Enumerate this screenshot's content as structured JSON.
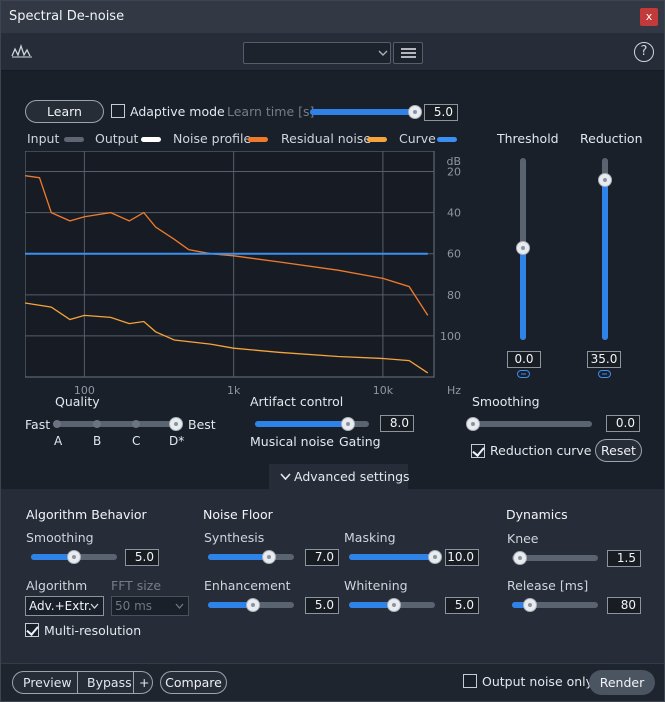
{
  "window": {
    "title": "Spectral De-noise",
    "close": "x"
  },
  "toolbar": {
    "preset_value": "",
    "help": "?"
  },
  "learn": {
    "button": "Learn",
    "adaptive_label": "Adaptive mode",
    "adaptive_checked": false,
    "learn_time_label": "Learn time [s]",
    "learn_time_value": "5.0"
  },
  "legend": [
    {
      "label": "Input",
      "color": "#5d6672"
    },
    {
      "label": "Output",
      "color": "#ffffff"
    },
    {
      "label": "Noise profile",
      "color": "#f07a2c"
    },
    {
      "label": "Residual noise",
      "color": "#f6a43b"
    },
    {
      "label": "Curve",
      "color": "#3a8ff0"
    }
  ],
  "chart_data": {
    "type": "line",
    "xlabel": "Hz",
    "ylabel": "dB",
    "x_ticks": [
      "100",
      "1k",
      "10k"
    ],
    "y_ticks": [
      "dB",
      "20",
      "40",
      "60",
      "80",
      "100"
    ],
    "series": [
      {
        "name": "Noise profile",
        "x": [
          40,
          50,
          60,
          80,
          100,
          150,
          200,
          250,
          300,
          400,
          500,
          700,
          1000,
          2000,
          5000,
          10000,
          15000,
          20000
        ],
        "y": [
          -22,
          -23,
          -40,
          -44,
          -42,
          -40,
          -44,
          -40,
          -47,
          -53,
          -58,
          -60,
          -61,
          -64,
          -68,
          -72,
          -76,
          -90
        ]
      },
      {
        "name": "Residual noise",
        "x": [
          40,
          60,
          80,
          100,
          150,
          200,
          250,
          300,
          400,
          700,
          1000,
          2000,
          5000,
          10000,
          15000,
          20000
        ],
        "y": [
          -84,
          -86,
          -92,
          -90,
          -91,
          -94,
          -93,
          -98,
          -102,
          -104,
          -106,
          -108,
          -110,
          -111,
          -112,
          -118
        ]
      },
      {
        "name": "Curve",
        "x": [
          40,
          20000
        ],
        "y": [
          -60,
          -60
        ]
      }
    ],
    "xlim": [
      40,
      22000
    ],
    "ylim": [
      -120,
      -10
    ],
    "x_scale": "log"
  },
  "threshold": {
    "label": "Threshold",
    "value": "0.0",
    "level_db": 0
  },
  "reduction": {
    "label": "Reduction",
    "value": "35.0",
    "level_db": 35
  },
  "quality": {
    "label": "Quality",
    "fast": "Fast",
    "best": "Best",
    "options": [
      "A",
      "B",
      "C",
      "D*"
    ],
    "selected": 3
  },
  "artifact": {
    "label": "Artifact control",
    "value": "8.0",
    "left": "Musical noise",
    "right": "Gating"
  },
  "smoothing_main": {
    "label": "Smoothing",
    "value": "0.0"
  },
  "reduction_curve": {
    "label": "Reduction curve",
    "checked": true
  },
  "reset": "Reset",
  "advanced": {
    "toggle": "Advanced settings"
  },
  "algorithm_behavior": {
    "title": "Algorithm Behavior",
    "smoothing_label": "Smoothing",
    "smoothing_value": "5.0",
    "algorithm_label": "Algorithm",
    "algorithm_value": "Adv.+Extr.",
    "fft_label": "FFT size",
    "fft_value": "50 ms",
    "multires_label": "Multi-resolution",
    "multires_checked": true
  },
  "noise_floor": {
    "title": "Noise Floor",
    "synthesis_label": "Synthesis",
    "synthesis_value": "7.0",
    "masking_label": "Masking",
    "masking_value": "10.0",
    "enhancement_label": "Enhancement",
    "enhancement_value": "5.0",
    "whitening_label": "Whitening",
    "whitening_value": "5.0"
  },
  "dynamics": {
    "title": "Dynamics",
    "knee_label": "Knee",
    "knee_value": "1.5",
    "release_label": "Release [ms]",
    "release_value": "80"
  },
  "bottom": {
    "preview": "Preview",
    "bypass": "Bypass",
    "plus": "+",
    "compare": "Compare",
    "output_noise_label": "Output noise only",
    "output_noise_checked": false,
    "render": "Render"
  }
}
